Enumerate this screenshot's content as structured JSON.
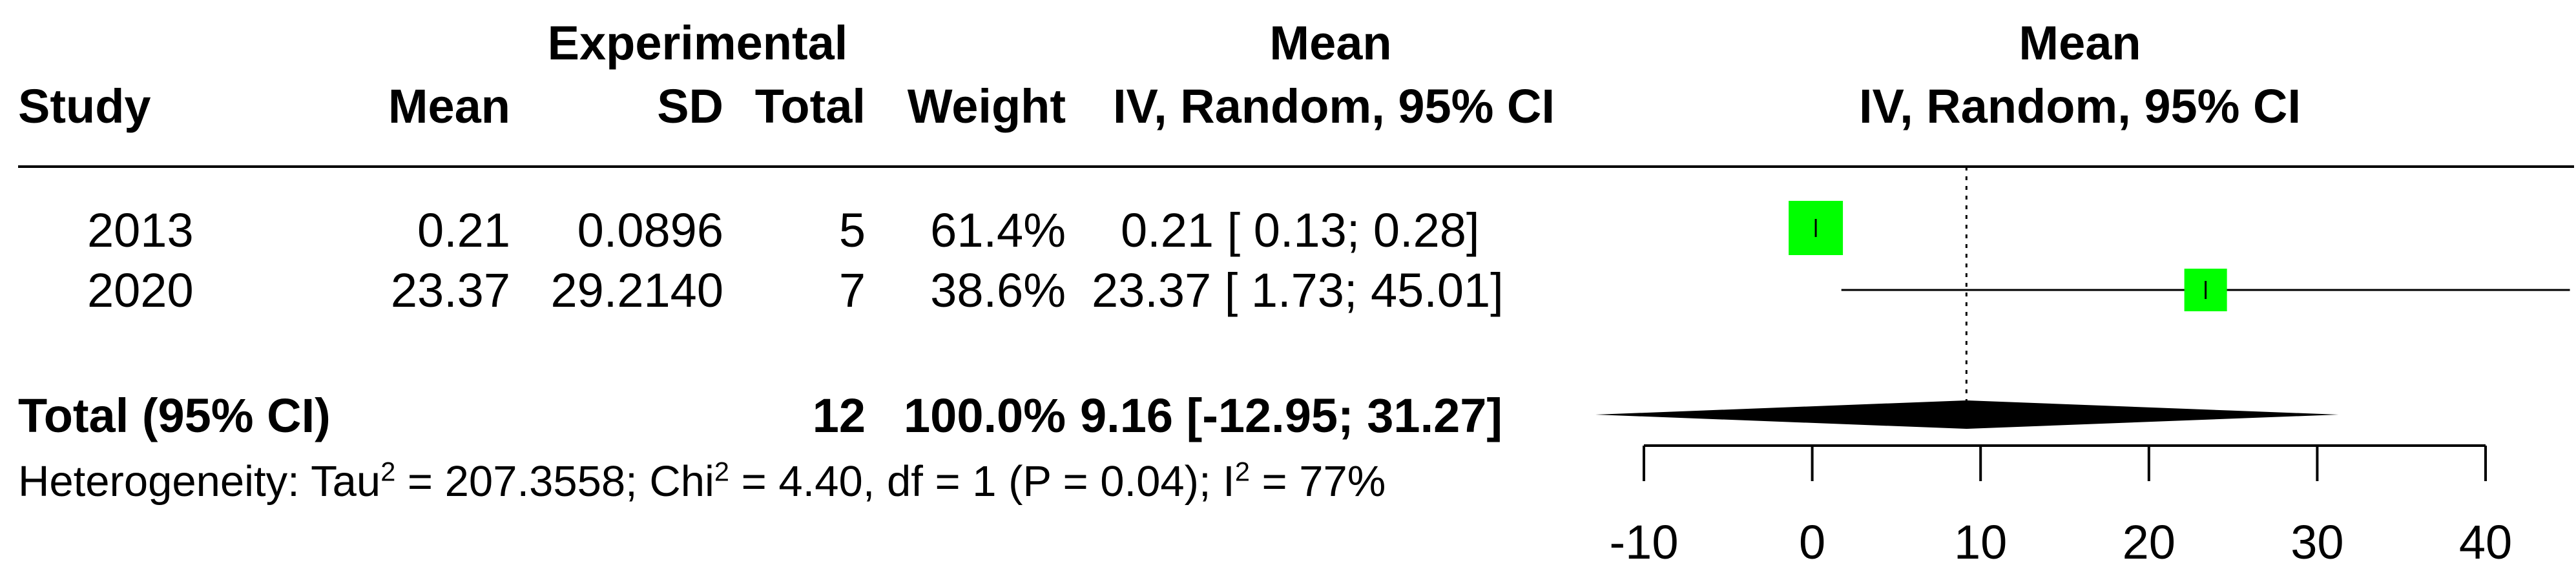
{
  "headers": {
    "group": "Experimental",
    "effect_top": "Mean",
    "effect_bottom": "IV, Random, 95% CI",
    "study": "Study",
    "mean": "Mean",
    "sd": "SD",
    "total": "Total",
    "weight": "Weight",
    "plot_top": "Mean",
    "plot_bottom": "IV, Random, 95% CI"
  },
  "studies": [
    {
      "study": "2013",
      "mean": "0.21",
      "sd": "0.0896",
      "total": "5",
      "weight": "61.4%",
      "ci": "0.21 [ 0.13;  0.28]"
    },
    {
      "study": "2020",
      "mean": "23.37",
      "sd": "29.2140",
      "total": "7",
      "weight": "38.6%",
      "ci": "23.37 [ 1.73; 45.01]"
    }
  ],
  "overall": {
    "label": "Total (95% CI)",
    "total": "12",
    "weight": "100.0%",
    "ci": "9.16 [-12.95; 31.27]"
  },
  "heterogeneity": {
    "prefix": "Heterogeneity: Tau",
    "tau_val": " = 207.3558; Chi",
    "chi_val": " = 4.40, df = 1 (P = 0.04); I",
    "i2_val": " = 77%",
    "sup": "2"
  },
  "colors": {
    "study_box": "#00ff00",
    "diamond": "#000000"
  },
  "chart_data": {
    "type": "forest",
    "xlim": [
      -10,
      40
    ],
    "ticks": [
      -10,
      0,
      10,
      20,
      30,
      40
    ],
    "tick_labels": [
      "-10",
      "0",
      "10",
      "20",
      "30",
      "40"
    ],
    "reference_line": 9.16,
    "series": [
      {
        "study": "2013",
        "estimate": 0.21,
        "lower": 0.13,
        "upper": 0.28,
        "weight": 61.4
      },
      {
        "study": "2020",
        "estimate": 23.37,
        "lower": 1.73,
        "upper": 45.01,
        "weight": 38.6
      }
    ],
    "pooled": {
      "estimate": 9.16,
      "lower": -12.95,
      "upper": 31.27
    }
  }
}
